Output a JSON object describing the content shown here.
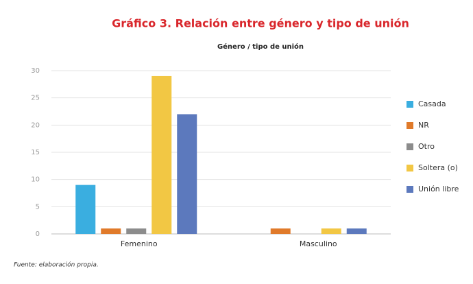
{
  "chart_data": {
    "type": "bar",
    "title": "Gráfico 3. Relación entre género y tipo de unión",
    "subtitle": "Género / tipo de unión",
    "source": "Fuente: elaboración propia.",
    "categories": [
      "Femenino",
      "Masculino"
    ],
    "series": [
      {
        "name": "Casada",
        "color": "#3aaee0",
        "values": [
          9,
          0
        ]
      },
      {
        "name": "NR",
        "color": "#e07a2a",
        "values": [
          1,
          1
        ]
      },
      {
        "name": "Otro",
        "color": "#8c8c8c",
        "values": [
          1,
          0
        ]
      },
      {
        "name": "Soltera (o)",
        "color": "#f2c744",
        "values": [
          29,
          1
        ]
      },
      {
        "name": "Unión libre",
        "color": "#5c79bd",
        "values": [
          22,
          1
        ]
      }
    ],
    "ylim": [
      0,
      30
    ],
    "yticks": [
      0,
      5,
      10,
      15,
      20,
      25,
      30
    ],
    "grid": true,
    "legend": "right"
  }
}
